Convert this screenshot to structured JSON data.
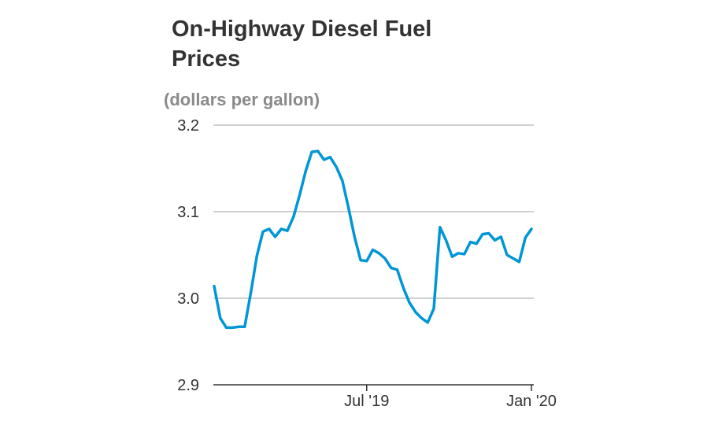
{
  "chart_data": {
    "type": "line",
    "title": "On-Highway Diesel Fuel Prices",
    "subtitle": "(dollars per gallon)",
    "ylim": [
      2.9,
      3.2
    ],
    "yticks": [
      2.9,
      3.0,
      3.1,
      3.2
    ],
    "ytick_labels": [
      "2.9",
      "3.0",
      "3.1",
      "3.2"
    ],
    "grid": true,
    "line_color": "#0096d6",
    "xticks": [
      {
        "x": "2019-07-01",
        "label": "Jul '19"
      },
      {
        "x": "2020-01-06",
        "label": "Jan '20"
      }
    ],
    "series": [
      {
        "x": [
          "2019-01-07",
          "2019-01-14",
          "2019-01-21",
          "2019-01-28",
          "2019-02-04",
          "2019-02-11",
          "2019-02-18",
          "2019-02-25",
          "2019-03-04",
          "2019-03-11",
          "2019-03-18",
          "2019-03-25",
          "2019-04-01",
          "2019-04-08",
          "2019-04-15",
          "2019-04-22",
          "2019-04-29",
          "2019-05-06",
          "2019-05-13",
          "2019-05-20",
          "2019-05-27",
          "2019-06-03",
          "2019-06-10",
          "2019-06-17",
          "2019-06-24",
          "2019-07-01",
          "2019-07-08",
          "2019-07-15",
          "2019-07-22",
          "2019-07-29",
          "2019-08-05",
          "2019-08-12",
          "2019-08-19",
          "2019-08-26",
          "2019-09-02",
          "2019-09-09",
          "2019-09-16",
          "2019-09-23",
          "2019-09-30",
          "2019-10-07",
          "2019-10-14",
          "2019-10-21",
          "2019-10-28",
          "2019-11-04",
          "2019-11-11",
          "2019-11-18",
          "2019-11-25",
          "2019-12-02",
          "2019-12-09",
          "2019-12-16",
          "2019-12-23",
          "2019-12-30",
          "2020-01-06"
        ],
        "values": [
          3.014,
          2.977,
          2.966,
          2.966,
          2.967,
          2.967,
          3.006,
          3.049,
          3.077,
          3.08,
          3.071,
          3.08,
          3.078,
          3.094,
          3.119,
          3.147,
          3.169,
          3.17,
          3.16,
          3.163,
          3.152,
          3.136,
          3.105,
          3.071,
          3.044,
          3.043,
          3.056,
          3.052,
          3.046,
          3.035,
          3.033,
          3.012,
          2.995,
          2.984,
          2.977,
          2.972,
          2.988,
          3.082,
          3.067,
          3.048,
          3.052,
          3.051,
          3.065,
          3.063,
          3.074,
          3.075,
          3.067,
          3.071,
          3.05,
          3.046,
          3.042,
          3.07,
          3.08
        ]
      }
    ]
  }
}
